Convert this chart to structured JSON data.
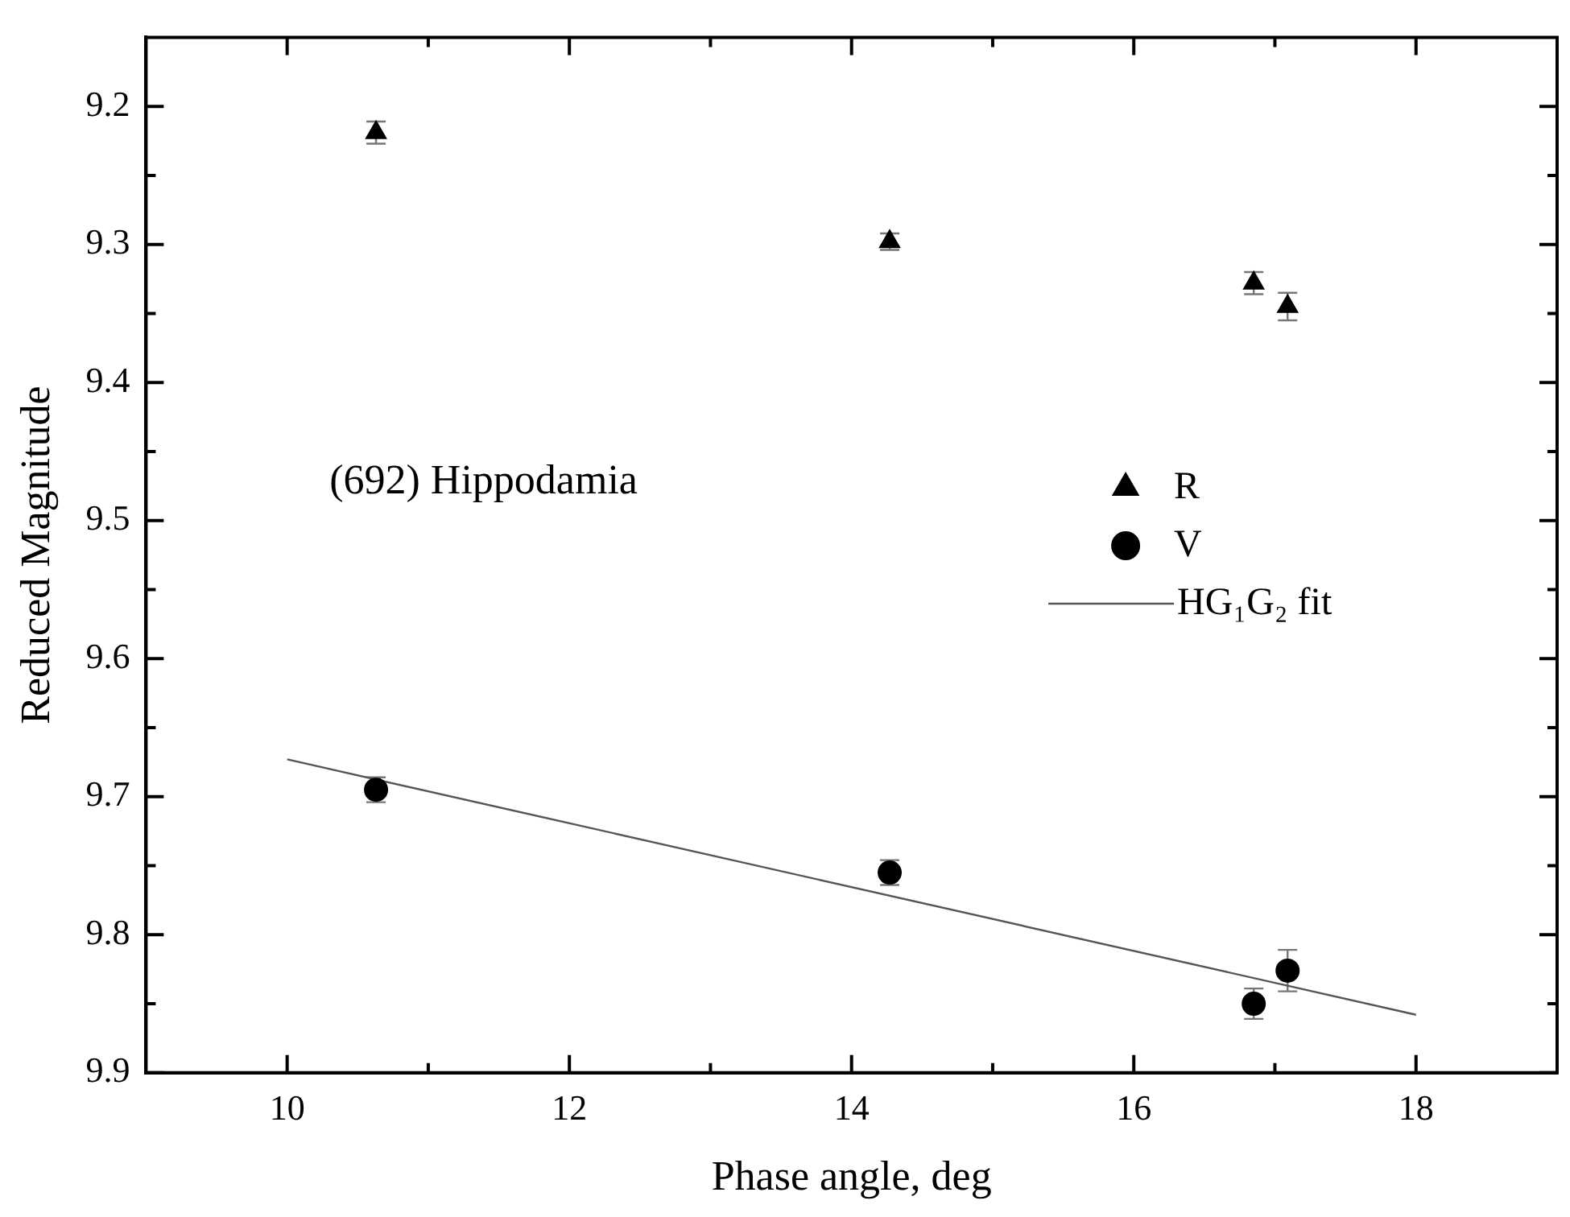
{
  "chart_data": {
    "type": "scatter",
    "xlabel": "Phase angle, deg",
    "ylabel": "Reduced Magnitude",
    "xlim": [
      9,
      19
    ],
    "xticks": [
      10,
      {
        "value": 11,
        "label": null
      },
      12,
      {
        "value": 13,
        "label": null
      },
      14,
      {
        "value": 15,
        "label": null
      },
      16,
      {
        "value": 17,
        "label": null
      },
      18
    ],
    "ylim": [
      9.9,
      9.15
    ],
    "yticks": [
      9.2,
      {
        "value": 9.25,
        "label": null
      },
      9.3,
      {
        "value": 9.35,
        "label": null
      },
      9.4,
      {
        "value": 9.45,
        "label": null
      },
      9.5,
      {
        "value": 9.55,
        "label": null
      },
      9.6,
      {
        "value": 9.65,
        "label": null
      },
      9.7,
      {
        "value": 9.75,
        "label": null
      },
      9.8,
      {
        "value": 9.85,
        "label": null
      },
      9.9
    ],
    "legend": "right",
    "annotations": [
      "(692) Hippodamia"
    ],
    "series": [
      {
        "name": "R",
        "marker": "triangle",
        "color": "#000000",
        "x": [
          10.63,
          14.27,
          16.85,
          17.09
        ],
        "values": [
          9.219,
          9.298,
          9.328,
          9.345
        ],
        "errors": [
          0.008,
          0.006,
          0.008,
          0.01
        ]
      },
      {
        "name": "V",
        "marker": "circle",
        "color": "#000000",
        "x": [
          10.63,
          14.27,
          16.85,
          17.09
        ],
        "values": [
          9.695,
          9.755,
          9.85,
          9.826
        ],
        "errors": [
          0.009,
          0.009,
          0.011,
          0.015
        ]
      },
      {
        "name": "HG₁G₂ fit",
        "type": "line",
        "marker": "none",
        "line_style": "solid",
        "color": "#555555",
        "x": [
          10,
          18
        ],
        "values": [
          9.673,
          9.858
        ]
      }
    ]
  }
}
